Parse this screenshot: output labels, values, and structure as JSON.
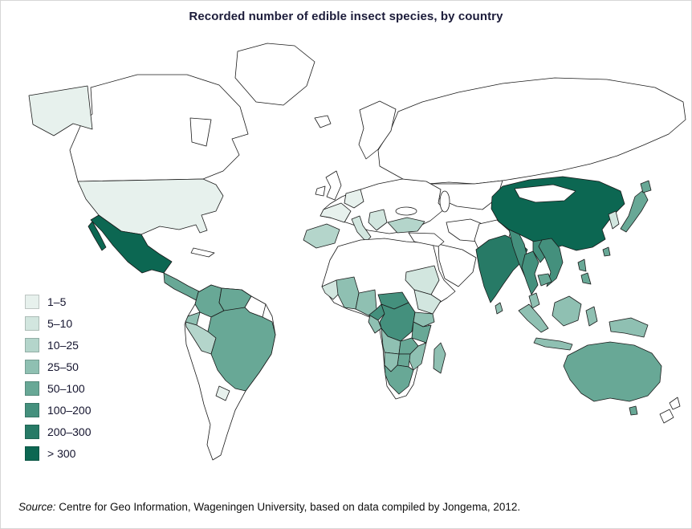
{
  "title": "Recorded number of edible insect species, by country",
  "legend": {
    "items": [
      {
        "label": "1–5",
        "color": "#e7f1ed"
      },
      {
        "label": "5–10",
        "color": "#d2e6df"
      },
      {
        "label": "10–25",
        "color": "#b4d5cb"
      },
      {
        "label": "25–50",
        "color": "#8fc0b2"
      },
      {
        "label": "50–100",
        "color": "#68a896"
      },
      {
        "label": "100–200",
        "color": "#44907d"
      },
      {
        "label": "200–300",
        "color": "#277a66"
      },
      {
        "label": "> 300",
        "color": "#0c6752"
      }
    ]
  },
  "source": {
    "prefix": "Source:",
    "text": " Centre for Geo Information, Wageningen University, based on data compiled by Jongema, 2012."
  },
  "map": {
    "ocean_color": "#ffffff",
    "no_data_color": "#ffffff",
    "border_color": "#1a1a1a",
    "countries": {
      "alaska-usa": "1–5",
      "usa": "1–5",
      "mexico": "> 300",
      "central-america": "50–100",
      "colombia": "50–100",
      "venezuela": "50–100",
      "ecuador": "25–50",
      "peru": "10–25",
      "brazil": "50–100",
      "paraguay": "1–5",
      "france": "1–5",
      "iberia": "10–25",
      "italy": "5–10",
      "germany": "1–5",
      "balkans": "5–10",
      "turkey": "10–25",
      "senegal-guinea": "5–10",
      "ghana-ivory-coast": "25–50",
      "nigeria": "25–50",
      "cameroon": "100–200",
      "central-african-republic": "100–200",
      "sudan": "5–10",
      "ethiopia": "5–10",
      "dr-congo": "100–200",
      "congo-gabon": "25–50",
      "uganda-kenya": "25–50",
      "tanzania": "50–100",
      "angola": "25–50",
      "zambia": "50–100",
      "zimbabwe": "50–100",
      "malawi-mozambique": "25–50",
      "botswana": "25–50",
      "south-africa": "50–100",
      "madagascar": "25–50",
      "india": "200–300",
      "sri-lanka": "25–50",
      "china": "> 300",
      "south-korea": "5–10",
      "japan": "50–100",
      "taiwan": "50–100",
      "myanmar": "100–200",
      "thailand": "100–200",
      "laos": "100–200",
      "vietnam": "100–200",
      "cambodia": "50–100",
      "malaysia": "25–50",
      "indonesia": "25–50",
      "papua-new-guinea": "25–50",
      "philippines": "50–100",
      "australia": "50–100"
    }
  }
}
